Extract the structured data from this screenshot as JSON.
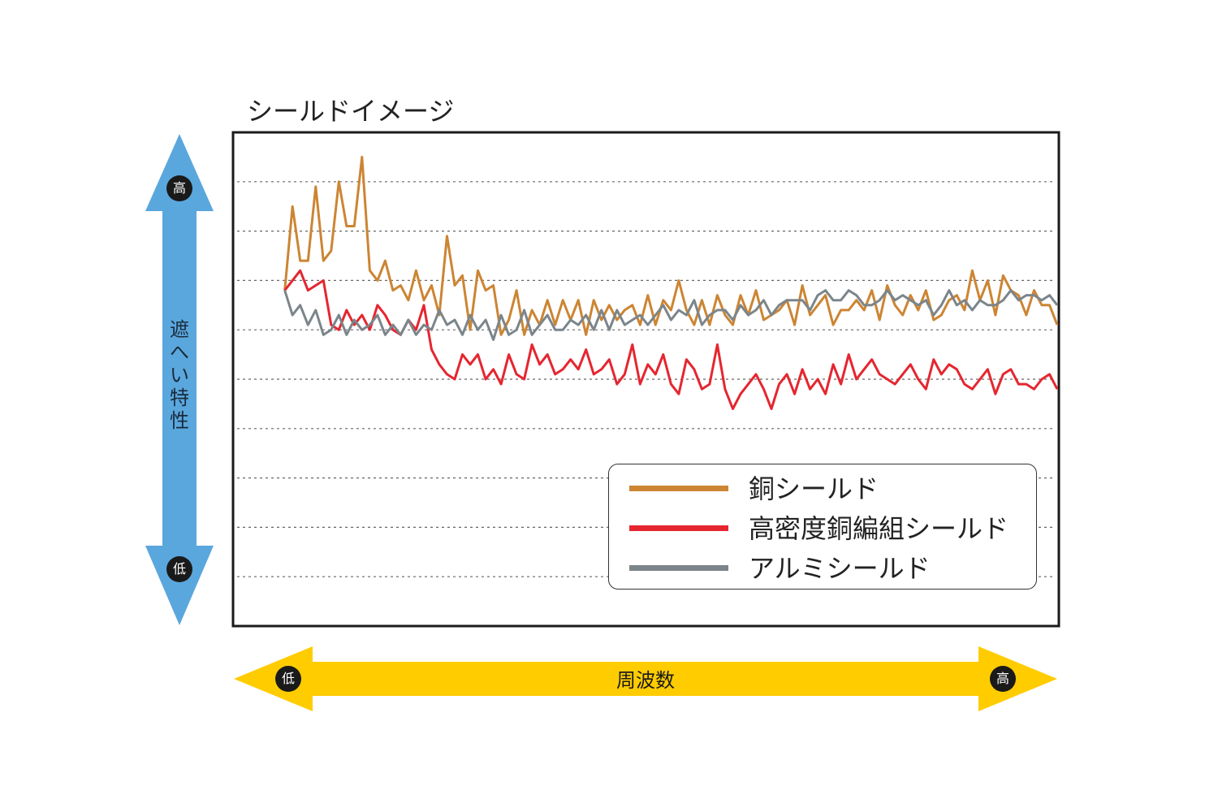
{
  "chart_data": {
    "type": "line",
    "title": "シールドイメージ",
    "ylabel": "遮へい特性",
    "xlabel": "周波数",
    "y_axis": {
      "high_label": "高",
      "low_label": "低",
      "color": "#5AA7DE"
    },
    "x_axis": {
      "low_label": "低",
      "high_label": "高",
      "color": "#FFCC00"
    },
    "ylim": [
      0,
      10
    ],
    "xlim": [
      0,
      100
    ],
    "grid": {
      "horizontal": true,
      "style": "dotted"
    },
    "legend": {
      "position": "bottom-right"
    },
    "series": [
      {
        "name": "銅シールド",
        "color": "#CC8533",
        "values": [
          6.8,
          8.5,
          7.4,
          7.4,
          8.9,
          7.4,
          7.6,
          9.0,
          8.1,
          8.1,
          9.5,
          7.2,
          7.0,
          7.4,
          6.8,
          6.9,
          6.6,
          7.2,
          6.6,
          6.9,
          6.3,
          7.9,
          6.9,
          7.1,
          6.0,
          7.2,
          6.8,
          6.9,
          5.9,
          6.2,
          6.8,
          5.9,
          6.4,
          6.1,
          6.6,
          6.1,
          6.6,
          6.2,
          6.6,
          5.9,
          6.6,
          6.2,
          6.5,
          6.2,
          6.4,
          6.5,
          6.1,
          6.7,
          6.1,
          6.6,
          6.4,
          7.0,
          6.4,
          6.1,
          6.6,
          6.1,
          6.7,
          6.3,
          6.1,
          6.7,
          6.3,
          6.8,
          6.2,
          6.3,
          6.4,
          6.6,
          6.1,
          6.9,
          6.3,
          6.5,
          6.7,
          6.1,
          6.4,
          6.4,
          6.6,
          6.4,
          6.8,
          6.2,
          6.9,
          6.5,
          6.3,
          6.7,
          6.4,
          6.8,
          6.2,
          6.3,
          6.6,
          6.7,
          6.4,
          7.2,
          6.6,
          7.0,
          6.3,
          7.1,
          6.8,
          6.7,
          6.3,
          6.8,
          6.5,
          6.5,
          6.1
        ]
      },
      {
        "name": "高密度銅編組シールド",
        "color": "#E52630",
        "values": [
          6.8,
          7.0,
          7.2,
          6.8,
          6.9,
          7.0,
          6.1,
          6.0,
          6.4,
          6.1,
          6.3,
          6.0,
          6.5,
          6.3,
          6.0,
          5.9,
          6.2,
          6.0,
          6.5,
          5.6,
          5.3,
          5.1,
          5.0,
          5.5,
          5.3,
          5.5,
          5.0,
          5.2,
          4.9,
          5.5,
          5.1,
          5.0,
          5.7,
          5.3,
          5.5,
          5.1,
          5.2,
          5.4,
          5.2,
          5.6,
          5.1,
          5.2,
          5.4,
          4.9,
          5.1,
          5.7,
          4.9,
          5.3,
          5.1,
          5.5,
          4.9,
          4.7,
          5.4,
          5.2,
          4.8,
          4.9,
          5.7,
          4.8,
          4.4,
          4.7,
          4.9,
          5.1,
          4.8,
          4.4,
          4.9,
          5.1,
          4.7,
          5.2,
          4.8,
          5.0,
          4.7,
          5.3,
          4.9,
          5.5,
          5.0,
          5.2,
          5.4,
          5.1,
          5.0,
          4.9,
          5.1,
          5.3,
          5.0,
          4.8,
          5.4,
          5.1,
          5.3,
          5.2,
          4.9,
          4.8,
          5.0,
          5.2,
          4.7,
          5.1,
          5.2,
          4.9,
          4.9,
          4.8,
          5.0,
          5.1,
          4.8
        ]
      },
      {
        "name": "アルミシールド",
        "color": "#7B858B",
        "values": [
          6.8,
          6.3,
          6.5,
          6.1,
          6.4,
          5.9,
          6.0,
          6.3,
          5.9,
          6.2,
          6.0,
          6.1,
          6.3,
          5.9,
          6.1,
          5.9,
          6.2,
          5.9,
          6.1,
          6.0,
          6.4,
          6.1,
          6.2,
          5.9,
          6.3,
          6.0,
          6.2,
          5.8,
          6.3,
          5.9,
          6.0,
          6.4,
          5.9,
          6.1,
          6.3,
          6.0,
          6.0,
          6.2,
          6.1,
          6.3,
          6.0,
          6.4,
          6.0,
          6.4,
          6.1,
          6.2,
          6.3,
          6.1,
          6.3,
          6.5,
          6.2,
          6.4,
          6.3,
          6.6,
          6.1,
          6.3,
          6.4,
          6.4,
          6.2,
          6.5,
          6.3,
          6.4,
          6.6,
          6.3,
          6.5,
          6.6,
          6.6,
          6.6,
          6.4,
          6.7,
          6.8,
          6.6,
          6.6,
          6.8,
          6.7,
          6.5,
          6.5,
          6.6,
          6.8,
          6.6,
          6.7,
          6.6,
          6.5,
          6.6,
          6.3,
          6.5,
          6.8,
          6.5,
          6.6,
          6.4,
          6.6,
          6.5,
          6.5,
          6.6,
          6.8,
          6.6,
          6.7,
          6.7,
          6.6,
          6.7,
          6.5
        ]
      }
    ]
  }
}
